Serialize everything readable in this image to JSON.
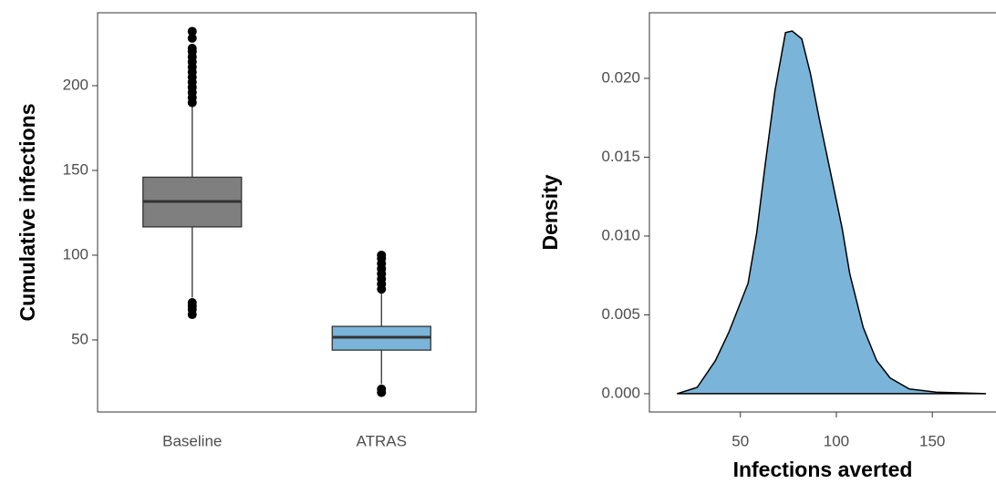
{
  "chart_data": [
    {
      "type": "box",
      "ylabel": "Cumulative infections",
      "categories": [
        "Baseline",
        "ATRAS"
      ],
      "boxes": [
        {
          "color": "#7f7f7f",
          "whisker_low": 75,
          "q1": 116.7,
          "median": 131.7,
          "q3": 146,
          "whisker_high": 190,
          "outliers": [
            190,
            193,
            196,
            199,
            202,
            205,
            208,
            211,
            214,
            217,
            220,
            222,
            228,
            232,
            72,
            70,
            68,
            65
          ]
        },
        {
          "color": "#7ab4d9",
          "whisker_low": 24,
          "q1": 44,
          "median": 51.6,
          "q3": 58,
          "whisker_high": 78.5,
          "outliers": [
            80,
            83,
            86,
            89,
            92,
            95,
            98,
            100,
            21,
            19
          ]
        }
      ],
      "ylim": [
        7.5,
        243
      ],
      "yticks": [
        50,
        100,
        150,
        200
      ]
    },
    {
      "type": "density",
      "xlabel": "Infections averted",
      "ylabel": "Density",
      "color": "#7ab4d9",
      "x": [
        17,
        27.5,
        37,
        44,
        54,
        58.5,
        63,
        68,
        73.5,
        77,
        82,
        86.5,
        91,
        96.5,
        103,
        107,
        114,
        121,
        128,
        138,
        152,
        178
      ],
      "values": [
        0,
        0.0004,
        0.0021,
        0.0039,
        0.007,
        0.0102,
        0.0146,
        0.0192,
        0.0229,
        0.023,
        0.0225,
        0.0203,
        0.0175,
        0.0143,
        0.0105,
        0.0076,
        0.0042,
        0.0021,
        0.001,
        0.0003,
        0.0001,
        0
      ],
      "xlim": [
        2.6,
        182.7
      ],
      "xticks": [
        50,
        100,
        150
      ],
      "ylim": [
        -0.00116,
        0.02416
      ],
      "yticks": [
        {
          "value": 0,
          "label": "0.000"
        },
        {
          "value": 0.005,
          "label": "0.005"
        },
        {
          "value": 0.01,
          "label": "0.010"
        },
        {
          "value": 0.015,
          "label": "0.015"
        },
        {
          "value": 0.02,
          "label": "0.020"
        }
      ]
    }
  ]
}
